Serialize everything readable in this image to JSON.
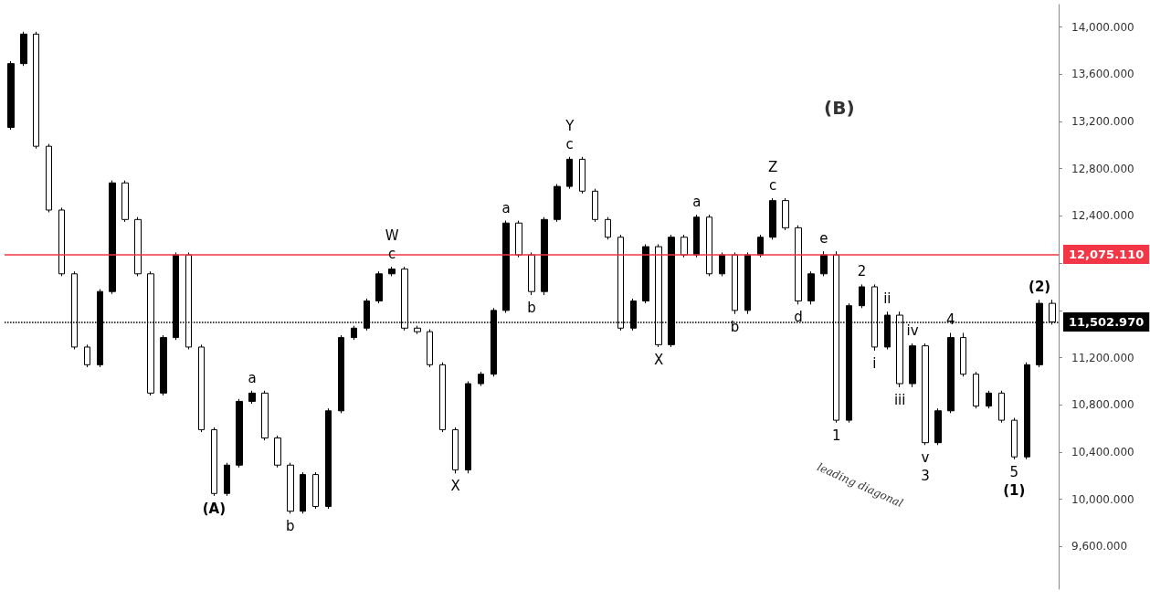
{
  "chart_data": {
    "type": "candlestick",
    "color": "#000000",
    "categories": [
      null,
      null,
      null,
      null,
      null,
      null,
      null,
      null,
      null,
      null,
      null,
      null,
      null,
      null,
      null,
      null,
      null,
      null,
      null,
      null,
      null,
      null,
      null,
      null,
      null,
      null,
      null,
      null,
      null,
      null,
      null,
      null,
      null,
      null,
      null,
      null,
      null,
      null,
      null,
      null,
      null,
      null,
      null,
      null,
      null,
      null,
      null,
      null,
      null,
      null,
      null,
      null,
      null,
      null,
      null,
      null,
      null,
      null,
      null,
      null,
      null,
      null,
      null,
      null,
      null,
      null,
      null,
      null,
      null,
      null,
      null,
      null,
      null,
      null,
      null,
      null,
      null,
      null,
      null,
      null,
      null,
      null,
      null
    ],
    "ohlc": [
      [
        13150,
        13710,
        13130,
        13690
      ],
      [
        13690,
        13960,
        13670,
        13940
      ],
      [
        13940,
        13960,
        12970,
        12990
      ],
      [
        12990,
        13010,
        12430,
        12450
      ],
      [
        12450,
        12470,
        11890,
        11910
      ],
      [
        11910,
        11930,
        11270,
        11290
      ],
      [
        11290,
        11310,
        11120,
        11140
      ],
      [
        11140,
        11780,
        11120,
        11760
      ],
      [
        11760,
        12700,
        11740,
        12680
      ],
      [
        12680,
        12700,
        12350,
        12370
      ],
      [
        12370,
        12390,
        11890,
        11910
      ],
      [
        11910,
        11930,
        10880,
        10900
      ],
      [
        10900,
        11390,
        10880,
        11370
      ],
      [
        11370,
        12090,
        11350,
        12070
      ],
      [
        12070,
        12090,
        11270,
        11290
      ],
      [
        11290,
        11310,
        10570,
        10590
      ],
      [
        10590,
        10610,
        10030,
        10050
      ],
      [
        10050,
        10310,
        10030,
        10290
      ],
      [
        10290,
        10850,
        10270,
        10830
      ],
      [
        10830,
        10920,
        10810,
        10900
      ],
      [
        10900,
        10920,
        10500,
        10520
      ],
      [
        10520,
        10540,
        10270,
        10290
      ],
      [
        10290,
        10310,
        9880,
        9900
      ],
      [
        9900,
        10230,
        9880,
        10210
      ],
      [
        10210,
        10230,
        9920,
        9940
      ],
      [
        9940,
        10770,
        9920,
        10750
      ],
      [
        10750,
        11390,
        10730,
        11370
      ],
      [
        11370,
        11470,
        11350,
        11450
      ],
      [
        11450,
        11700,
        11430,
        11680
      ],
      [
        11680,
        11930,
        11660,
        11910
      ],
      [
        11910,
        11970,
        11890,
        11950
      ],
      [
        11950,
        11970,
        11430,
        11450
      ],
      [
        11450,
        11470,
        11400,
        11420
      ],
      [
        11420,
        11440,
        11120,
        11140
      ],
      [
        11140,
        11160,
        10570,
        10590
      ],
      [
        10590,
        10610,
        10220,
        10250
      ],
      [
        10250,
        11000,
        10220,
        10980
      ],
      [
        10980,
        11080,
        10960,
        11060
      ],
      [
        11060,
        11620,
        11040,
        11600
      ],
      [
        11600,
        12360,
        11580,
        12340
      ],
      [
        12340,
        12360,
        12050,
        12070
      ],
      [
        12070,
        12090,
        11730,
        11760
      ],
      [
        11760,
        12390,
        11730,
        12370
      ],
      [
        12370,
        12670,
        12350,
        12650
      ],
      [
        12650,
        12900,
        12630,
        12880
      ],
      [
        12880,
        12900,
        12590,
        12610
      ],
      [
        12610,
        12630,
        12350,
        12370
      ],
      [
        12370,
        12390,
        12200,
        12220
      ],
      [
        12220,
        12240,
        11430,
        11450
      ],
      [
        11450,
        11700,
        11430,
        11680
      ],
      [
        11680,
        12160,
        11660,
        12140
      ],
      [
        12140,
        12160,
        11290,
        11310
      ],
      [
        11310,
        12240,
        11290,
        12220
      ],
      [
        12220,
        12240,
        12050,
        12070
      ],
      [
        12070,
        12410,
        12050,
        12390
      ],
      [
        12390,
        12410,
        11890,
        11910
      ],
      [
        11910,
        12090,
        11890,
        12070
      ],
      [
        12070,
        12090,
        11570,
        11600
      ],
      [
        11600,
        12090,
        11570,
        12070
      ],
      [
        12070,
        12240,
        12050,
        12220
      ],
      [
        12220,
        12550,
        12200,
        12530
      ],
      [
        12530,
        12550,
        12280,
        12300
      ],
      [
        12300,
        12320,
        11650,
        11680
      ],
      [
        11680,
        11930,
        11650,
        11910
      ],
      [
        11910,
        12100,
        11890,
        12070
      ],
      [
        12070,
        12100,
        10650,
        10670
      ],
      [
        10670,
        11660,
        10650,
        11640
      ],
      [
        11640,
        11820,
        11620,
        11800
      ],
      [
        11800,
        11820,
        11260,
        11290
      ],
      [
        11290,
        11590,
        11270,
        11560
      ],
      [
        11560,
        11590,
        10950,
        10980
      ],
      [
        10980,
        11320,
        10950,
        11300
      ],
      [
        11300,
        11320,
        10460,
        10480
      ],
      [
        10480,
        10770,
        10460,
        10750
      ],
      [
        10750,
        11410,
        10730,
        11370
      ],
      [
        11370,
        11410,
        11040,
        11060
      ],
      [
        11060,
        11080,
        10770,
        10790
      ],
      [
        10790,
        10920,
        10770,
        10900
      ],
      [
        10900,
        10920,
        10650,
        10670
      ],
      [
        10670,
        10690,
        10340,
        10360
      ],
      [
        10360,
        11160,
        10340,
        11140
      ],
      [
        11140,
        11690,
        11120,
        11660
      ],
      [
        11660,
        11690,
        11480,
        11503
      ]
    ],
    "ylim": [
      9240,
      14190
    ],
    "yticks": [
      {
        "value": 9600,
        "label": "9,600.000"
      },
      {
        "value": 10000,
        "label": "10,000.000"
      },
      {
        "value": 10400,
        "label": "10,400.000"
      },
      {
        "value": 10800,
        "label": "10,800.000"
      },
      {
        "value": 11200,
        "label": "11,200.000"
      },
      {
        "value": 11600,
        "label": null
      },
      {
        "value": 12000,
        "label": null
      },
      {
        "value": 12400,
        "label": "12,400.000"
      },
      {
        "value": 12800,
        "label": "12,800.000"
      },
      {
        "value": 13200,
        "label": "13,200.000"
      },
      {
        "value": 13600,
        "label": "13,600.000"
      },
      {
        "value": 14000,
        "label": "14,000.000"
      }
    ],
    "tick_labels": "y",
    "grid": false,
    "ref_lines": [
      {
        "axis": "y",
        "value": 12075.11,
        "label": "12,075.110",
        "color": "#f23645",
        "line_style": "solid"
      },
      {
        "axis": "y",
        "value": 11502.97,
        "label": "11,502.970",
        "color": "#000000",
        "line_style": "dotted"
      }
    ],
    "annotations": [
      {
        "text": "(A)",
        "y": 10030
      },
      {
        "text": "a",
        "y": 10920
      },
      {
        "text": "b",
        "y": 9880
      },
      {
        "text": "c",
        "y": 11970
      },
      {
        "text": "W",
        "y": 11970
      },
      {
        "text": "X",
        "y": 10220
      },
      {
        "text": "a",
        "y": 12360
      },
      {
        "text": "b",
        "y": 11730
      },
      {
        "text": "c",
        "y": 12900
      },
      {
        "text": "Y",
        "y": 12900
      },
      {
        "text": "X",
        "y": 11290
      },
      {
        "text": "a",
        "y": 12410
      },
      {
        "text": "b",
        "y": 11570
      },
      {
        "text": "c",
        "y": 12550
      },
      {
        "text": "Z",
        "y": 12550
      },
      "(B)",
      {
        "text": "d",
        "y": 11650
      },
      {
        "text": "e",
        "y": 12100
      },
      {
        "text": "1",
        "y": 10650
      },
      {
        "text": "2",
        "y": 11820
      },
      {
        "text": "i",
        "y": 11260
      },
      {
        "text": "ii",
        "y": 11590
      },
      {
        "text": "iii",
        "y": 10950
      },
      {
        "text": "iv",
        "y": 11320
      },
      {
        "text": "v",
        "y": 10460
      },
      {
        "text": "3",
        "y": 10460
      },
      {
        "text": "4",
        "y": 11410
      },
      {
        "text": "5",
        "y": 10340
      },
      {
        "text": "(1)",
        "y": 10340
      },
      {
        "text": "(2)",
        "y": 11690
      },
      "leading diagonal"
    ]
  }
}
